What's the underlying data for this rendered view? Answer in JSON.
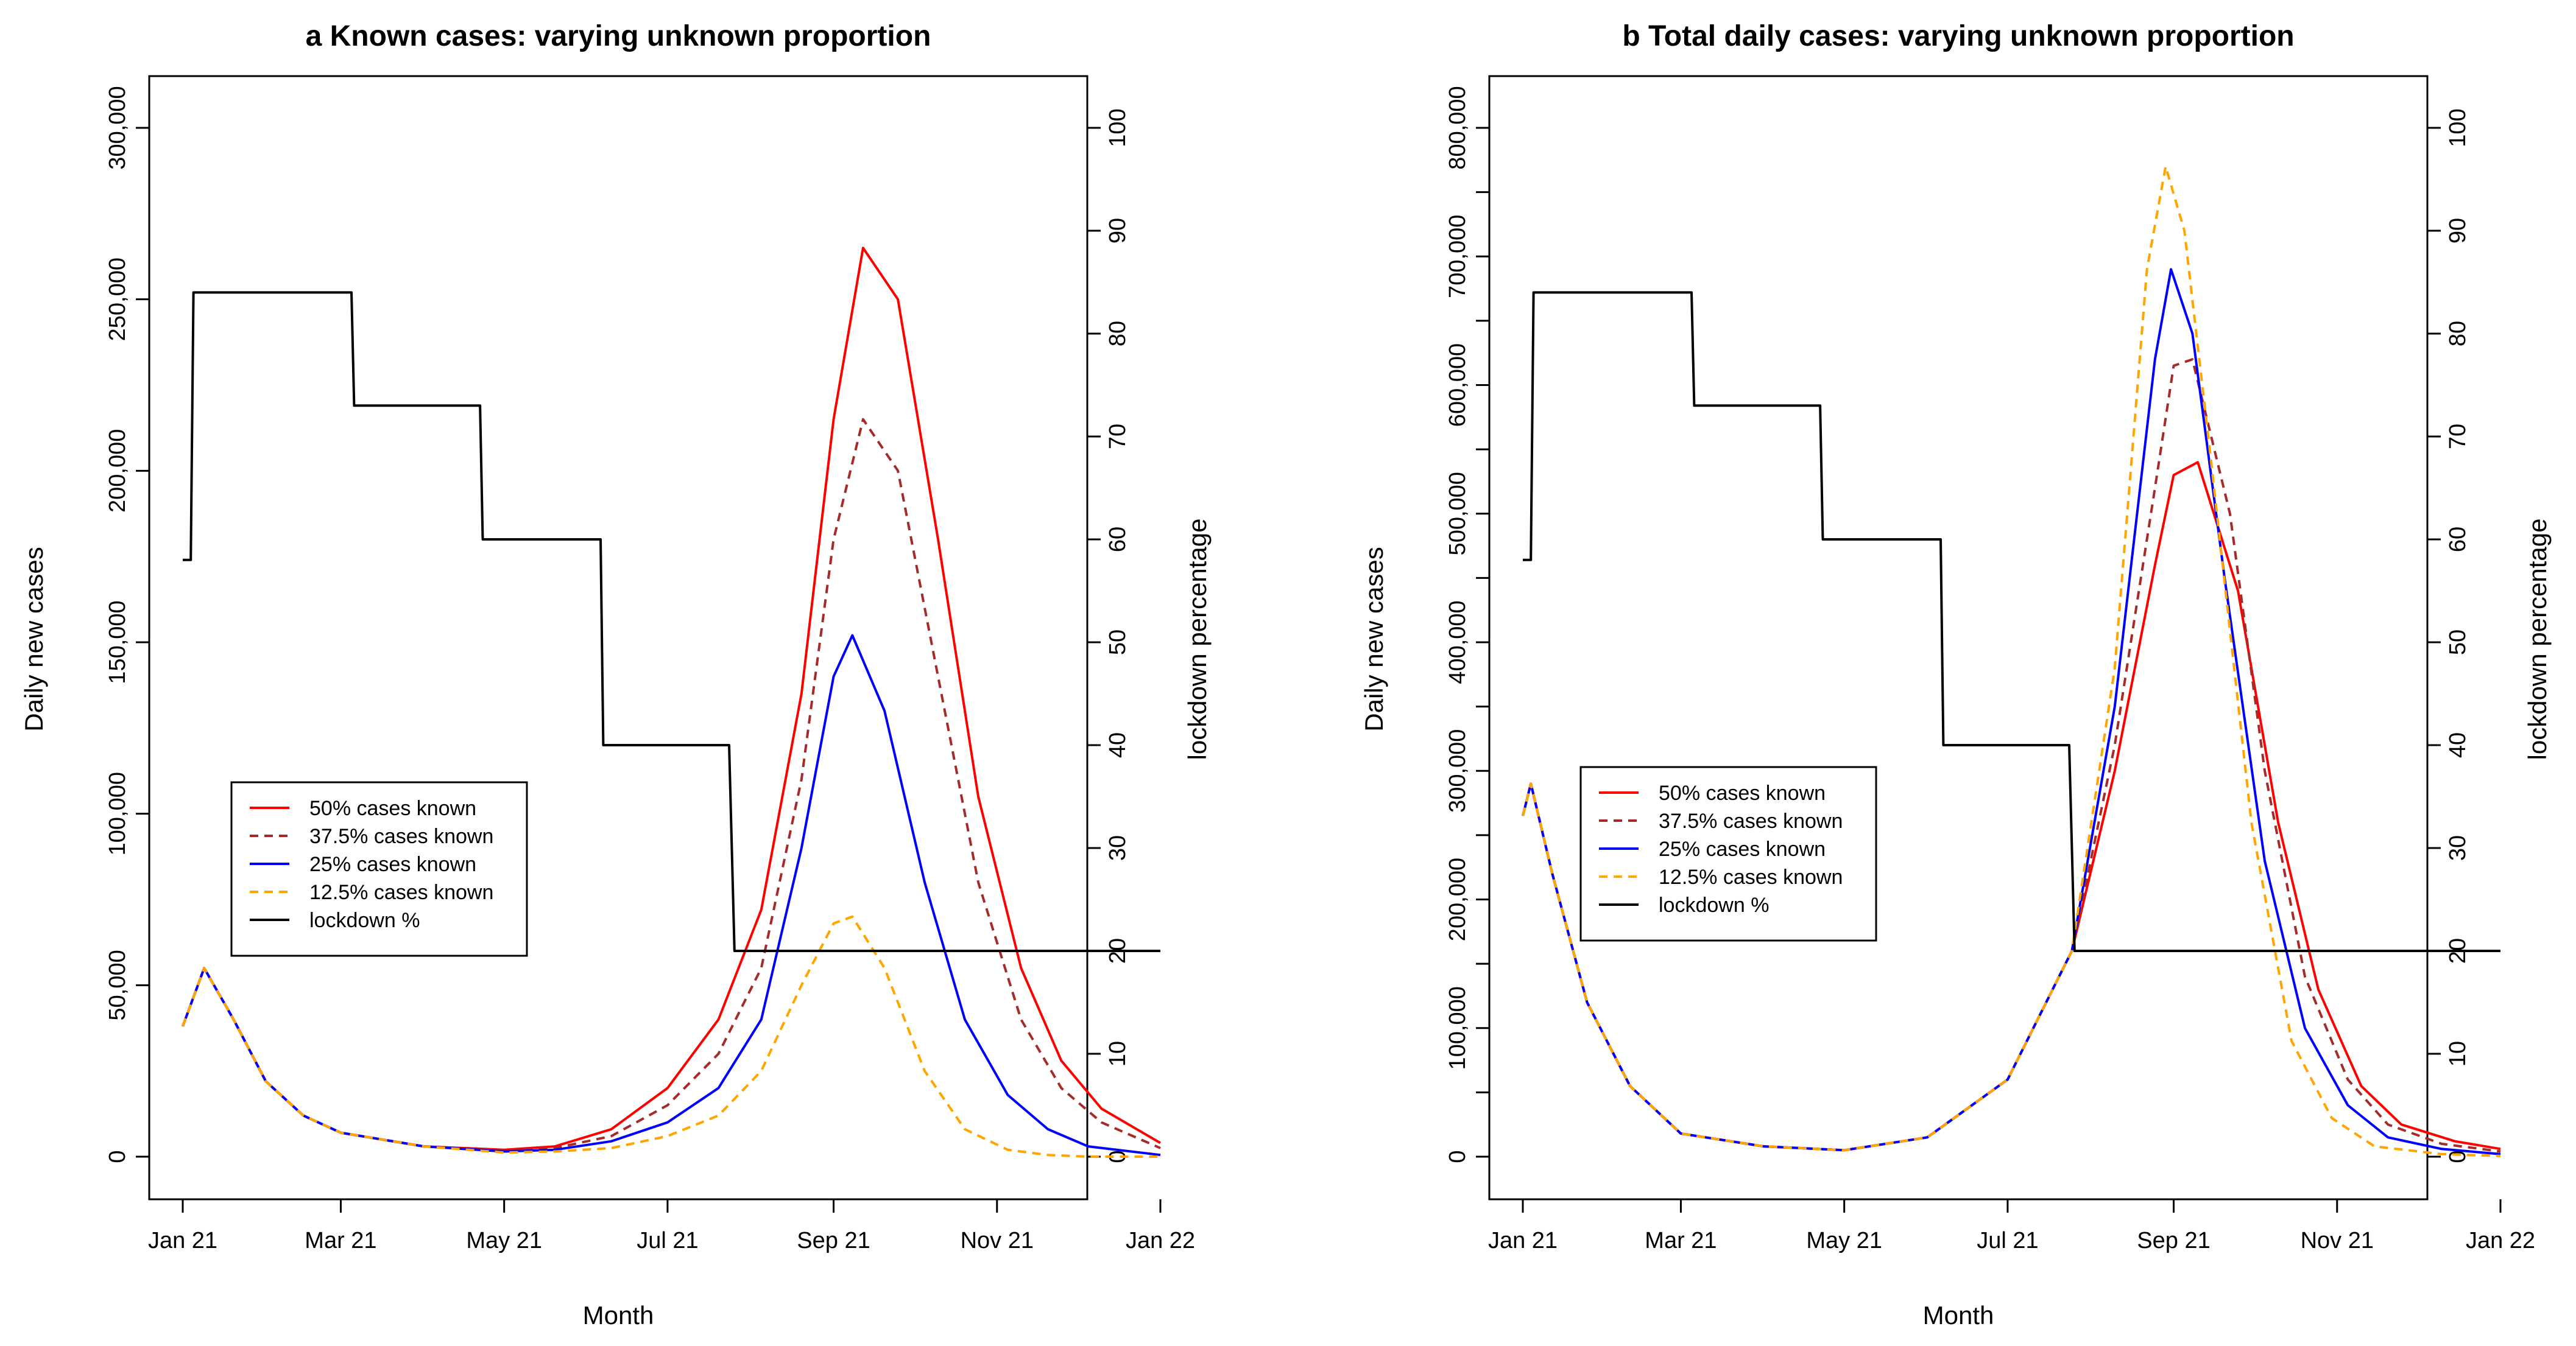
{
  "chart_data": [
    {
      "type": "line",
      "title": "a Known cases: varying unknown proportion",
      "xlabel": "Month",
      "ylabel": "Daily new cases",
      "y2label": "lockdown percentage",
      "x_ticks": [
        "Jan 21",
        "Mar 21",
        "May 21",
        "Jul 21",
        "Sep 21",
        "Nov 21",
        "Jan 22"
      ],
      "y_ticks": [
        "0",
        "50,000",
        "100,000",
        "150,000",
        "200,000",
        "250,000",
        "300,000"
      ],
      "y2_ticks": [
        "0",
        "10",
        "20",
        "30",
        "40",
        "50",
        "60",
        "70",
        "80",
        "90",
        "100"
      ],
      "ylim": [
        0,
        300000
      ],
      "y2lim": [
        0,
        100
      ],
      "legend": {
        "position": "left-middle",
        "entries": [
          "50% cases known",
          "37.5% cases known",
          "25% cases known",
          "12.5% cases known",
          "lockdown %"
        ]
      },
      "series": [
        {
          "name": "50% cases known",
          "color": "#ff0000",
          "style": "solid",
          "x": [
            "2021-01-01",
            "2021-01-09",
            "2021-01-20",
            "2021-02-01",
            "2021-02-15",
            "2021-03-01",
            "2021-04-01",
            "2021-05-01",
            "2021-05-20",
            "2021-06-10",
            "2021-07-01",
            "2021-07-20",
            "2021-08-05",
            "2021-08-20",
            "2021-09-01",
            "2021-09-12",
            "2021-09-25",
            "2021-10-10",
            "2021-10-25",
            "2021-11-10",
            "2021-11-25",
            "2021-12-10",
            "2022-01-01"
          ],
          "y": [
            38000,
            55000,
            40000,
            22000,
            12000,
            7000,
            3000,
            2000,
            3000,
            8000,
            20000,
            40000,
            72000,
            135000,
            215000,
            265000,
            250000,
            180000,
            105000,
            55000,
            28000,
            14000,
            4000
          ]
        },
        {
          "name": "37.5% cases known",
          "color": "#a52a2a",
          "style": "dashed",
          "x": [
            "2021-01-01",
            "2021-01-09",
            "2021-01-20",
            "2021-02-01",
            "2021-02-15",
            "2021-03-01",
            "2021-04-01",
            "2021-05-01",
            "2021-05-20",
            "2021-06-10",
            "2021-07-01",
            "2021-07-20",
            "2021-08-05",
            "2021-08-20",
            "2021-09-01",
            "2021-09-12",
            "2021-09-25",
            "2021-10-10",
            "2021-10-25",
            "2021-11-10",
            "2021-11-25",
            "2021-12-10",
            "2022-01-01"
          ],
          "y": [
            38000,
            55000,
            40000,
            22000,
            12000,
            7000,
            3000,
            1800,
            2500,
            6000,
            15000,
            30000,
            55000,
            110000,
            180000,
            215000,
            200000,
            140000,
            80000,
            40000,
            20000,
            10000,
            2500
          ]
        },
        {
          "name": "25% cases known",
          "color": "#0000ff",
          "style": "solid",
          "x": [
            "2021-01-01",
            "2021-01-09",
            "2021-01-20",
            "2021-02-01",
            "2021-02-15",
            "2021-03-01",
            "2021-04-01",
            "2021-05-01",
            "2021-05-20",
            "2021-06-10",
            "2021-07-01",
            "2021-07-20",
            "2021-08-05",
            "2021-08-20",
            "2021-09-01",
            "2021-09-08",
            "2021-09-20",
            "2021-10-05",
            "2021-10-20",
            "2021-11-05",
            "2021-11-20",
            "2021-12-05",
            "2022-01-01"
          ],
          "y": [
            38000,
            55000,
            40000,
            22000,
            12000,
            7000,
            3000,
            1500,
            2000,
            4500,
            10000,
            20000,
            40000,
            90000,
            140000,
            152000,
            130000,
            80000,
            40000,
            18000,
            8000,
            3000,
            500
          ]
        },
        {
          "name": "12.5% cases known",
          "color": "#ffa500",
          "style": "dashed",
          "x": [
            "2021-01-01",
            "2021-01-09",
            "2021-01-20",
            "2021-02-01",
            "2021-02-15",
            "2021-03-01",
            "2021-04-01",
            "2021-05-01",
            "2021-05-20",
            "2021-06-10",
            "2021-07-01",
            "2021-07-20",
            "2021-08-05",
            "2021-08-20",
            "2021-09-01",
            "2021-09-08",
            "2021-09-20",
            "2021-10-05",
            "2021-10-20",
            "2021-11-05",
            "2021-11-20",
            "2021-12-05",
            "2022-01-01"
          ],
          "y": [
            38000,
            55000,
            40000,
            22000,
            12000,
            7000,
            3000,
            1200,
            1500,
            2500,
            6000,
            12000,
            25000,
            50000,
            68000,
            70000,
            55000,
            25000,
            8000,
            2000,
            500,
            0,
            0
          ]
        },
        {
          "name": "lockdown %",
          "color": "#000000",
          "style": "step",
          "axis": "right",
          "x": [
            "2021-01-01",
            "2021-01-04",
            "2021-01-05",
            "2021-03-05",
            "2021-03-06",
            "2021-04-22",
            "2021-04-23",
            "2021-06-06",
            "2021-06-07",
            "2021-07-24",
            "2021-07-26",
            "2022-01-01"
          ],
          "y": [
            58,
            58,
            84,
            84,
            73,
            73,
            60,
            60,
            40,
            40,
            20,
            20
          ]
        }
      ]
    },
    {
      "type": "line",
      "title": "b Total daily cases: varying unknown proportion",
      "xlabel": "Month",
      "ylabel": "Daily new cases",
      "y2label": "lockdown percentage",
      "x_ticks": [
        "Jan 21",
        "Mar 21",
        "May 21",
        "Jul 21",
        "Sep 21",
        "Nov 21",
        "Jan 22"
      ],
      "y_ticks": [
        "0",
        "100,000",
        "200,000",
        "300,000",
        "400,000",
        "500,000",
        "600,000",
        "700,000",
        "800,000"
      ],
      "y2_ticks": [
        "0",
        "10",
        "20",
        "30",
        "40",
        "50",
        "60",
        "70",
        "80",
        "90",
        "100"
      ],
      "ylim": [
        0,
        800000
      ],
      "y2lim": [
        0,
        100
      ],
      "legend": {
        "position": "left-middle",
        "entries": [
          "50% cases known",
          "37.5% cases known",
          "25% cases known",
          "12.5% cases known",
          "lockdown %"
        ]
      },
      "series": [
        {
          "name": "50% cases known",
          "color": "#ff0000",
          "style": "solid",
          "x": [
            "2021-01-01",
            "2021-01-04",
            "2021-01-12",
            "2021-01-25",
            "2021-02-10",
            "2021-03-01",
            "2021-04-01",
            "2021-05-01",
            "2021-06-01",
            "2021-07-01",
            "2021-07-25",
            "2021-08-10",
            "2021-08-25",
            "2021-09-01",
            "2021-09-10",
            "2021-09-25",
            "2021-10-10",
            "2021-10-25",
            "2021-11-10",
            "2021-11-25",
            "2021-12-15",
            "2022-01-01"
          ],
          "y": [
            265000,
            290000,
            220000,
            120000,
            55000,
            18000,
            8000,
            5000,
            15000,
            60000,
            160000,
            300000,
            460000,
            530000,
            540000,
            440000,
            260000,
            130000,
            55000,
            25000,
            12000,
            6000
          ]
        },
        {
          "name": "37.5% cases known",
          "color": "#a52a2a",
          "style": "dashed",
          "x": [
            "2021-01-01",
            "2021-01-04",
            "2021-01-12",
            "2021-01-25",
            "2021-02-10",
            "2021-03-01",
            "2021-04-01",
            "2021-05-01",
            "2021-06-01",
            "2021-07-01",
            "2021-07-25",
            "2021-08-10",
            "2021-08-25",
            "2021-09-01",
            "2021-09-08",
            "2021-09-22",
            "2021-10-05",
            "2021-10-20",
            "2021-11-05",
            "2021-11-20",
            "2021-12-10",
            "2022-01-01"
          ],
          "y": [
            265000,
            290000,
            220000,
            120000,
            55000,
            18000,
            8000,
            5000,
            15000,
            60000,
            160000,
            320000,
            520000,
            615000,
            620000,
            500000,
            300000,
            140000,
            60000,
            25000,
            10000,
            4000
          ]
        },
        {
          "name": "25% cases known",
          "color": "#0000ff",
          "style": "solid",
          "x": [
            "2021-01-01",
            "2021-01-04",
            "2021-01-12",
            "2021-01-25",
            "2021-02-10",
            "2021-03-01",
            "2021-04-01",
            "2021-05-01",
            "2021-06-01",
            "2021-07-01",
            "2021-07-25",
            "2021-08-10",
            "2021-08-25",
            "2021-08-31",
            "2021-09-08",
            "2021-09-20",
            "2021-10-05",
            "2021-10-20",
            "2021-11-05",
            "2021-11-20",
            "2021-12-10",
            "2022-01-01"
          ],
          "y": [
            265000,
            290000,
            220000,
            120000,
            55000,
            18000,
            8000,
            5000,
            15000,
            60000,
            160000,
            350000,
            620000,
            690000,
            640000,
            450000,
            230000,
            100000,
            40000,
            15000,
            6000,
            2000
          ]
        },
        {
          "name": "12.5% cases known",
          "color": "#ffa500",
          "style": "dashed",
          "x": [
            "2021-01-01",
            "2021-01-04",
            "2021-01-12",
            "2021-01-25",
            "2021-02-10",
            "2021-03-01",
            "2021-04-01",
            "2021-05-01",
            "2021-06-01",
            "2021-07-01",
            "2021-07-25",
            "2021-08-10",
            "2021-08-22",
            "2021-08-29",
            "2021-09-05",
            "2021-09-15",
            "2021-09-30",
            "2021-10-15",
            "2021-10-30",
            "2021-11-15",
            "2021-12-10",
            "2022-01-01"
          ],
          "y": [
            265000,
            290000,
            220000,
            120000,
            55000,
            18000,
            8000,
            5000,
            15000,
            60000,
            160000,
            380000,
            690000,
            770000,
            720000,
            540000,
            260000,
            90000,
            30000,
            8000,
            2000,
            500
          ]
        },
        {
          "name": "lockdown %",
          "color": "#000000",
          "style": "step",
          "axis": "right",
          "x": [
            "2021-01-01",
            "2021-01-04",
            "2021-01-05",
            "2021-03-05",
            "2021-03-06",
            "2021-04-22",
            "2021-04-23",
            "2021-06-06",
            "2021-06-07",
            "2021-07-24",
            "2021-07-26",
            "2022-01-01"
          ],
          "y": [
            58,
            58,
            84,
            84,
            73,
            73,
            60,
            60,
            40,
            40,
            20,
            20
          ]
        }
      ]
    }
  ]
}
